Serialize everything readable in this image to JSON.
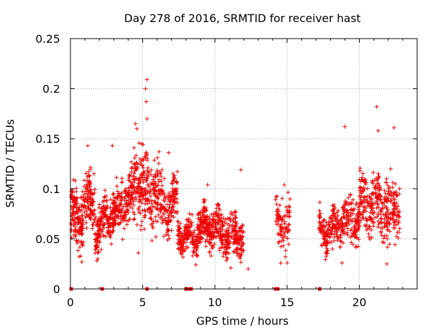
{
  "chart_data": {
    "type": "scatter",
    "title": "Day 278 of 2016, SRMTID for receiver hast",
    "xlabel": "GPS time / hours",
    "ylabel": "SRMTID / TECUs",
    "xlim": [
      0,
      24
    ],
    "ylim": [
      0,
      0.25
    ],
    "grid": true,
    "marker": "+",
    "color": "#ee0000",
    "xticks": [
      0,
      5,
      10,
      15,
      20
    ],
    "xtick_labels": [
      "0",
      "5",
      "10",
      "15",
      "20"
    ],
    "yticks": [
      0,
      0.05,
      0.1,
      0.15,
      0.2,
      0.25
    ],
    "ytick_labels": [
      "0",
      "0.05",
      "0.1",
      "0.15",
      "0.2",
      "0.25"
    ],
    "zero_markers_x": [
      0.05,
      2.2,
      5.3,
      8.0,
      8.25,
      8.35,
      14.2,
      14.35,
      17.25
    ],
    "series": [
      {
        "name": "SRMTID",
        "segments": [
          {
            "x_start": 0.05,
            "x_end": 0.9,
            "mean": 0.072,
            "spread": 0.022,
            "points": 140
          },
          {
            "x_start": 0.9,
            "x_end": 1.7,
            "mean": 0.088,
            "spread": 0.022,
            "points": 110
          },
          {
            "x_start": 1.7,
            "x_end": 2.3,
            "mean": 0.06,
            "spread": 0.018,
            "points": 90
          },
          {
            "x_start": 2.3,
            "x_end": 3.5,
            "mean": 0.075,
            "spread": 0.018,
            "points": 160
          },
          {
            "x_start": 3.5,
            "x_end": 4.4,
            "mean": 0.09,
            "spread": 0.022,
            "points": 120
          },
          {
            "x_start": 4.4,
            "x_end": 5.1,
            "mean": 0.105,
            "spread": 0.03,
            "points": 100
          },
          {
            "x_start": 5.1,
            "x_end": 6.2,
            "mean": 0.095,
            "spread": 0.03,
            "points": 140
          },
          {
            "x_start": 6.2,
            "x_end": 7.4,
            "mean": 0.085,
            "spread": 0.022,
            "points": 140
          },
          {
            "x_start": 7.4,
            "x_end": 8.8,
            "mean": 0.052,
            "spread": 0.014,
            "points": 170
          },
          {
            "x_start": 8.8,
            "x_end": 10.3,
            "mean": 0.062,
            "spread": 0.016,
            "points": 220
          },
          {
            "x_start": 10.3,
            "x_end": 12.0,
            "mean": 0.055,
            "spread": 0.016,
            "points": 220
          },
          {
            "x_start": 14.2,
            "x_end": 15.2,
            "mean": 0.065,
            "spread": 0.02,
            "points": 90
          },
          {
            "x_start": 17.2,
            "x_end": 18.5,
            "mean": 0.058,
            "spread": 0.016,
            "points": 150
          },
          {
            "x_start": 18.5,
            "x_end": 20.0,
            "mean": 0.07,
            "spread": 0.02,
            "points": 160
          },
          {
            "x_start": 20.0,
            "x_end": 21.5,
            "mean": 0.085,
            "spread": 0.024,
            "points": 180
          },
          {
            "x_start": 21.5,
            "x_end": 22.8,
            "mean": 0.08,
            "spread": 0.026,
            "points": 150
          }
        ],
        "outliers": [
          {
            "x": 5.3,
            "y": 0.209
          },
          {
            "x": 5.2,
            "y": 0.2
          },
          {
            "x": 5.25,
            "y": 0.187
          },
          {
            "x": 5.3,
            "y": 0.17
          },
          {
            "x": 4.5,
            "y": 0.165
          },
          {
            "x": 4.6,
            "y": 0.16
          },
          {
            "x": 21.2,
            "y": 0.182
          },
          {
            "x": 19.0,
            "y": 0.162
          },
          {
            "x": 22.4,
            "y": 0.161
          },
          {
            "x": 21.3,
            "y": 0.158
          },
          {
            "x": 1.2,
            "y": 0.143
          },
          {
            "x": 2.9,
            "y": 0.143
          },
          {
            "x": 6.8,
            "y": 0.136
          },
          {
            "x": 11.8,
            "y": 0.119
          },
          {
            "x": 9.5,
            "y": 0.104
          },
          {
            "x": 14.8,
            "y": 0.104
          },
          {
            "x": 1.9,
            "y": 0.03
          },
          {
            "x": 12.3,
            "y": 0.02
          },
          {
            "x": 11.1,
            "y": 0.021
          },
          {
            "x": 15.0,
            "y": 0.026
          },
          {
            "x": 18.8,
            "y": 0.026
          },
          {
            "x": 21.9,
            "y": 0.025
          },
          {
            "x": 4.7,
            "y": 0.036
          }
        ]
      }
    ]
  }
}
